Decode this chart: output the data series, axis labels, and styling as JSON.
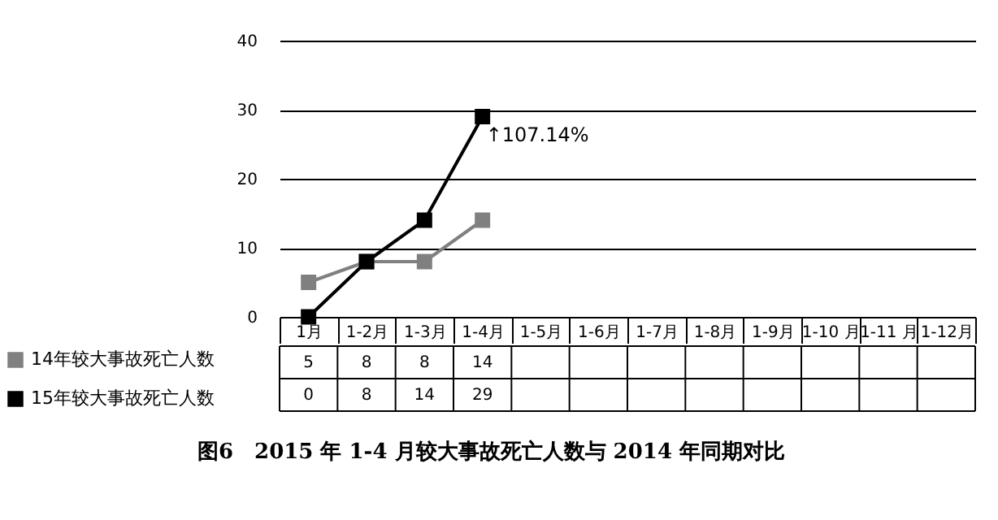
{
  "chart_data": {
    "type": "line",
    "title": "图6　2015 年 1-4 月较大事故死亡人数与 2014 年同期对比",
    "categories": [
      "1月",
      "1-2月",
      "1-3月",
      "1-4月",
      "1-5月",
      "1-6月",
      "1-7月",
      "1-8月",
      "1-9月",
      "1-10 月",
      "1-11 月",
      "1-12月"
    ],
    "series": [
      {
        "name": "14年较大事故死亡人数",
        "color": "#808080",
        "values": [
          5,
          8,
          8,
          14,
          null,
          null,
          null,
          null,
          null,
          null,
          null,
          null
        ]
      },
      {
        "name": "15年较大事故死亡人数",
        "color": "#000000",
        "values": [
          0,
          8,
          14,
          29,
          null,
          null,
          null,
          null,
          null,
          null,
          null,
          null
        ]
      }
    ],
    "ylim": [
      0,
      40
    ],
    "yticks": [
      0,
      10,
      20,
      30,
      40
    ],
    "grid": "y",
    "marker": "square",
    "legend": "bottom left",
    "data_labels": true,
    "annotations": [
      {
        "text": "↑107.14%",
        "x": "1-4月",
        "y": 29
      }
    ]
  }
}
